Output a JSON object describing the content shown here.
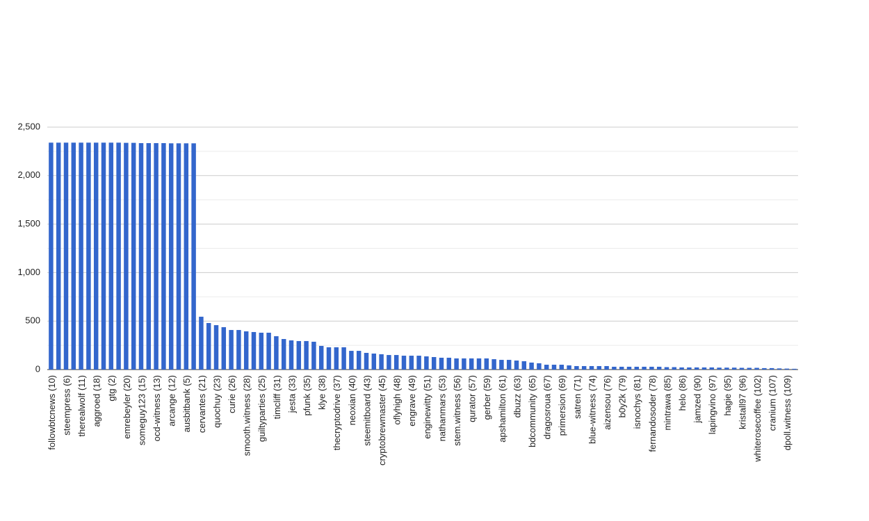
{
  "chart_data": {
    "type": "bar",
    "categories": [
      "followbtcnews (10)",
      null,
      "steempress (6)",
      null,
      "therealwolf (11)",
      null,
      "aggroed (18)",
      null,
      "gtg (2)",
      null,
      "emrebeyler (20)",
      null,
      "someguy123 (15)",
      null,
      "ocd-witness (13)",
      null,
      "arcange (12)",
      null,
      "ausbitbank (5)",
      null,
      "cervantes (21)",
      null,
      "quochuy (23)",
      null,
      "curie (26)",
      null,
      "smooth.witness (28)",
      null,
      "guiltyparties (25)",
      null,
      "timcliff (31)",
      null,
      "jesta (33)",
      null,
      "pfunk (35)",
      null,
      "klye (38)",
      null,
      "thecryptodrive (37)",
      null,
      "neoxian (40)",
      null,
      "steemitboard (43)",
      null,
      "cryptobrewmaster (45)",
      null,
      "oflyhigh (48)",
      null,
      "engrave (49)",
      null,
      "enginewitty (51)",
      null,
      "nathanmars (53)",
      null,
      "stem.witness (56)",
      null,
      "qurator (57)",
      null,
      "gerber (59)",
      null,
      "apshamilton (61)",
      null,
      "dbuzz (63)",
      null,
      "bdcommunity (65)",
      null,
      "dragosroua (67)",
      null,
      "primersion (69)",
      null,
      "satren (71)",
      null,
      "blue-witness (74)",
      null,
      "aizensou (76)",
      null,
      "b0y2k (79)",
      null,
      "isnochys (81)",
      null,
      "fernandosoder (78)",
      null,
      "mintrawa (85)",
      null,
      "helo (86)",
      null,
      "jamzed (90)",
      null,
      "lapingvino (97)",
      null,
      "hagie (95)",
      null,
      "kristall97 (96)",
      null,
      "whiterosecoffee (102)",
      null,
      "cranium (107)",
      null,
      "dpoll.witness (109)",
      null
    ],
    "values": [
      2340,
      2340,
      2340,
      2340,
      2340,
      2340,
      2340,
      2340,
      2340,
      2340,
      2338,
      2338,
      2335,
      2335,
      2335,
      2335,
      2333,
      2333,
      2333,
      2333,
      545,
      480,
      458,
      437,
      408,
      408,
      394,
      387,
      380,
      380,
      344,
      315,
      301,
      294,
      294,
      287,
      244,
      230,
      230,
      230,
      193,
      193,
      172,
      165,
      158,
      150,
      150,
      143,
      143,
      143,
      136,
      129,
      122,
      122,
      115,
      115,
      115,
      115,
      115,
      107,
      100,
      100,
      93,
      86,
      72,
      65,
      50,
      50,
      50,
      43,
      36,
      36,
      36,
      36,
      36,
      29,
      29,
      29,
      29,
      29,
      29,
      29,
      25,
      25,
      22,
      22,
      22,
      22,
      22,
      20,
      20,
      20,
      18,
      18,
      18,
      15,
      15,
      12,
      10,
      8
    ],
    "color": "#3366cc",
    "ylim": [
      0,
      2500
    ],
    "yticks": [
      0,
      500,
      {
        "value": 1000,
        "label": "1,000"
      },
      {
        "value": 1500,
        "label": "1,500"
      },
      {
        "value": 2000,
        "label": "2,000"
      },
      {
        "value": 2500,
        "label": "2,500"
      }
    ],
    "grid": true
  }
}
